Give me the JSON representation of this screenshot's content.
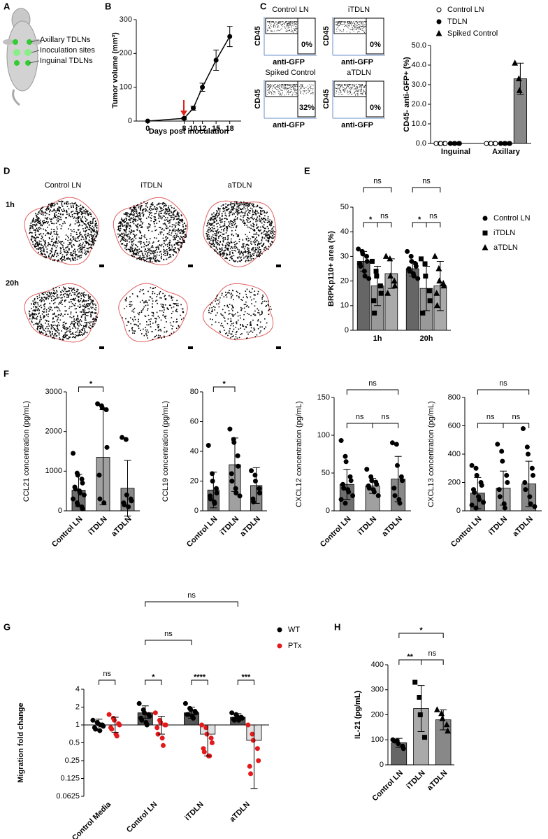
{
  "panel_letters": [
    "A",
    "B",
    "C",
    "D",
    "E",
    "F",
    "G",
    "H"
  ],
  "diagram": {
    "labels": [
      "Axillary TDLNs",
      "Inoculation sites",
      "Inguinal TDLNs"
    ]
  },
  "flow": {
    "y_label": "CD45",
    "x_label": "anti-GFP",
    "panels": [
      {
        "title": "Control LN",
        "percent": "0%"
      },
      {
        "title": "iTDLN",
        "percent": "0%"
      },
      {
        "title": "Spiked Control",
        "percent": "32%"
      },
      {
        "title": "aTDLN",
        "percent": "0%"
      }
    ]
  },
  "images": {
    "columns": [
      "Control LN",
      "iTDLN",
      "aTDLN"
    ],
    "rows": [
      "1h",
      "20h"
    ]
  },
  "chart_data": [
    {
      "type": "line",
      "y_label": "Tumor volume (mm³)",
      "x_label": "Days post inoculation",
      "x": [
        0,
        8,
        10,
        12,
        15,
        18
      ],
      "values": [
        0,
        8,
        38,
        100,
        180,
        250
      ],
      "errors": [
        0,
        3,
        6,
        12,
        30,
        30
      ],
      "color": "#000000",
      "xlim": [
        -2.5,
        20.5
      ],
      "xticks": [
        0,
        8,
        10,
        12,
        15,
        18
      ],
      "ylim": [
        0,
        300
      ],
      "yticks": [
        0,
        100,
        200,
        300
      ]
    },
    {
      "type": "bar",
      "y_label": "CD45- anti-GFP+ (%)",
      "categories": [
        "Inguinal",
        "Axillary"
      ],
      "series": [
        {
          "name": "Control LN",
          "marker": "circle",
          "open": true,
          "color": "#000000",
          "bar_color": "#888888",
          "values": [
            0,
            0
          ],
          "points": [
            [
              0,
              0,
              0,
              0,
              0
            ],
            [
              0,
              0,
              0,
              0,
              0
            ]
          ]
        },
        {
          "name": "TDLN",
          "marker": "circle",
          "color": "#000000",
          "bar_color": "#888888",
          "values": [
            0,
            0
          ],
          "points": [
            [
              0,
              0,
              0,
              0,
              0
            ],
            [
              0,
              0,
              0,
              0,
              0
            ]
          ]
        },
        {
          "name": "Spiked Control",
          "marker": "triangle",
          "color": "#000000",
          "bar_color": "#888888",
          "values": [
            null,
            33
          ],
          "errors": [
            null,
            8
          ],
          "points": [
            null,
            [
              41,
              33,
              27
            ]
          ]
        }
      ],
      "ylim": [
        0,
        50
      ],
      "yticks": [
        {
          "value": 0,
          "label": "0.0"
        },
        {
          "value": 10,
          "label": "10.0"
        },
        {
          "value": 20,
          "label": "20.0"
        },
        {
          "value": 30,
          "label": "30.0"
        },
        {
          "value": 40,
          "label": "40.0"
        },
        {
          "value": 50,
          "label": "50.0"
        }
      ]
    },
    {
      "type": "bar",
      "y_label": "BRPKp110+ area (%)",
      "categories": [
        "1h",
        "20h"
      ],
      "series": [
        {
          "name": "Control LN",
          "marker": "circle",
          "color": "#000000",
          "bar_color": "#666666",
          "values": [
            28,
            25
          ],
          "errors": [
            4,
            3
          ],
          "points": [
            [
              33,
              32,
              31,
              30,
              28,
              27,
              26,
              24,
              22,
              21
            ],
            [
              32,
              30,
              28,
              27,
              26,
              25,
              24,
              23,
              22,
              21
            ]
          ]
        },
        {
          "name": "iTDLN",
          "marker": "square",
          "color": "#000000",
          "bar_color": "#999999",
          "values": [
            18,
            17
          ],
          "errors": [
            8,
            9
          ],
          "points": [
            [
              28,
              24,
              22,
              18,
              15,
              12,
              7
            ],
            [
              29,
              27,
              22,
              16,
              12,
              7
            ]
          ]
        },
        {
          "name": "aTDLN",
          "marker": "triangle",
          "color": "#000000",
          "bar_color": "#aaaaaa",
          "values": [
            23,
            18
          ],
          "errors": [
            6,
            10
          ],
          "points": [
            [
              30,
              29,
              22,
              20,
              18,
              15
            ],
            [
              30,
              25,
              20,
              19,
              18,
              15,
              10
            ]
          ]
        }
      ],
      "ylim": [
        0,
        50
      ],
      "yticks": [
        0,
        10,
        20,
        30,
        40,
        50
      ],
      "annotations": [
        "ns",
        "*",
        "ns",
        "ns",
        "*",
        "ns"
      ]
    },
    {
      "type": "bar",
      "y_label": "CCL21 concentration (pg/mL)",
      "categories": [
        "Control LN",
        "iTDLN",
        "aTDLN"
      ],
      "series": [
        {
          "marker": "circle",
          "color": "#000000",
          "colors": [
            "#6e6e6e",
            "#a0a0a0",
            "#888888"
          ],
          "values": [
            520,
            1350,
            570
          ],
          "errors": [
            400,
            1200,
            700
          ],
          "points": [
            [
              1450,
              950,
              900,
              800,
              700,
              600,
              550,
              500,
              450,
              400,
              300,
              200,
              150,
              100,
              50
            ],
            [
              2700,
              2650,
              2600,
              2550,
              1600,
              900,
              300,
              200
            ],
            [
              1850,
              1800,
              400,
              300,
              250,
              200,
              150,
              100
            ]
          ]
        }
      ],
      "ylim": [
        0,
        3000
      ],
      "yticks": [
        0,
        1000,
        2000,
        3000
      ],
      "annotations": [
        "*"
      ]
    },
    {
      "type": "bar",
      "y_label": "CCL19 concentration (pg/mL)",
      "categories": [
        "Control LN",
        "iTDLN",
        "aTDLN"
      ],
      "series": [
        {
          "marker": "circle",
          "color": "#000000",
          "colors": [
            "#6e6e6e",
            "#a0a0a0",
            "#888888"
          ],
          "values": [
            14,
            31,
            17
          ],
          "errors": [
            12,
            18,
            12
          ],
          "points": [
            [
              44,
              25,
              20,
              15,
              12,
              10,
              8,
              6,
              5
            ],
            [
              55,
              48,
              46,
              37,
              30,
              25,
              20,
              15,
              12,
              10
            ],
            [
              27,
              24,
              20,
              15,
              12,
              8,
              6
            ]
          ]
        }
      ],
      "ylim": [
        0,
        80
      ],
      "yticks": [
        0,
        20,
        40,
        60,
        80
      ],
      "annotations": [
        "*"
      ]
    },
    {
      "type": "bar",
      "y_label": "CXCL12 concentration (pg/mL)",
      "categories": [
        "Control LN",
        "iTDLN",
        "aTDLN"
      ],
      "series": [
        {
          "marker": "circle",
          "color": "#000000",
          "colors": [
            "#6e6e6e",
            "#a0a0a0",
            "#888888"
          ],
          "values": [
            35,
            33,
            42
          ],
          "errors": [
            20,
            10,
            30
          ],
          "points": [
            [
              93,
              72,
              65,
              45,
              40,
              35,
              30,
              28,
              25,
              20,
              15,
              10
            ],
            [
              55,
              45,
              40,
              38,
              35,
              33,
              30,
              28,
              25,
              20
            ],
            [
              90,
              88,
              60,
              45,
              40,
              30,
              20,
              15,
              10
            ]
          ]
        }
      ],
      "ylim": [
        0,
        150
      ],
      "yticks": [
        0,
        50,
        100,
        150
      ],
      "annotations": [
        "ns",
        "ns",
        "ns"
      ]
    },
    {
      "type": "bar",
      "y_label": "CXCL13 concentration (pg/mL)",
      "categories": [
        "Control LN",
        "iTDLN",
        "aTDLN"
      ],
      "series": [
        {
          "marker": "circle",
          "color": "#000000",
          "colors": [
            "#6e6e6e",
            "#a0a0a0",
            "#888888"
          ],
          "values": [
            125,
            160,
            190
          ],
          "errors": [
            110,
            120,
            160
          ],
          "points": [
            [
              320,
              300,
              250,
              200,
              180,
              150,
              130,
              100,
              80,
              60,
              40,
              20
            ],
            [
              470,
              420,
              350,
              250,
              200,
              150,
              100,
              50,
              20
            ],
            [
              580,
              450,
              400,
              300,
              250,
              200,
              150,
              100,
              50,
              30
            ]
          ]
        }
      ],
      "ylim": [
        0,
        800
      ],
      "yticks": [
        0,
        200,
        400,
        600,
        800
      ],
      "annotations": [
        "ns",
        "ns",
        "ns"
      ]
    },
    {
      "type": "bar",
      "y_label": "Migration fold change",
      "log": true,
      "categories": [
        "Control Media",
        "Control LN",
        "iTDLN",
        "aTDLN"
      ],
      "series": [
        {
          "name": "WT",
          "marker": "circle",
          "color": "#000000",
          "bar_color": "#555555",
          "values": [
            1.0,
            1.6,
            1.6,
            1.35
          ],
          "error_bounds": [
            [
              0.8,
              1.25
            ],
            [
              1.3,
              2.1
            ],
            [
              1.3,
              2.0
            ],
            [
              1.2,
              1.55
            ]
          ],
          "points": [
            [
              1.2,
              1.1,
              1.05,
              1.0,
              0.95,
              0.9,
              0.85,
              0.8,
              1.0
            ],
            [
              2.3,
              1.8,
              1.6,
              1.5,
              1.4,
              1.3,
              1.2,
              1.1,
              1.0
            ],
            [
              2.3,
              1.9,
              1.8,
              1.7,
              1.6,
              1.5,
              1.5,
              1.4,
              1.3
            ],
            [
              1.6,
              1.5,
              1.4,
              1.35,
              1.3,
              1.25,
              1.2,
              1.2
            ]
          ]
        },
        {
          "name": "PTx",
          "marker": "circle",
          "color": "#e31a1c",
          "bar_color": "#e0e0e0",
          "values": [
            1.0,
            1.0,
            0.7,
            0.55
          ],
          "error_bounds": [
            [
              0.75,
              1.35
            ],
            [
              0.7,
              1.4
            ],
            [
              0.3,
              1.0
            ],
            [
              0.085,
              1.0
            ]
          ],
          "points": [
            [
              1.5,
              1.3,
              1.2,
              1.05,
              1.0,
              0.9,
              0.85,
              0.7,
              0.65
            ],
            [
              1.6,
              1.2,
              1.1,
              1.0,
              1.0,
              0.9,
              0.7,
              0.6,
              0.45
            ],
            [
              1.0,
              0.9,
              0.7,
              0.6,
              0.5,
              0.4,
              0.35,
              0.3,
              0.3
            ],
            [
              1.0,
              0.7,
              0.55,
              0.4,
              0.25,
              0.2,
              0.15
            ]
          ]
        }
      ],
      "ylim": [
        0.0625,
        4
      ],
      "yticks": [
        4,
        2,
        1,
        0.5,
        0.25,
        0.125,
        0.0625
      ],
      "annotations": [
        "ns",
        "*",
        "****",
        "***",
        "ns",
        "ns"
      ]
    },
    {
      "type": "bar",
      "y_label": "IL-21 (pg/mL)",
      "categories": [
        "Control LN",
        "iTDLN",
        "aTDLN"
      ],
      "series": [
        {
          "markers": [
            "circle",
            "square",
            "triangle"
          ],
          "color": "#000000",
          "colors": [
            "#666666",
            "#aaaaaa",
            "#888888"
          ],
          "values": [
            88,
            225,
            180
          ],
          "errors": [
            18,
            92,
            40
          ],
          "points": [
            [
              100,
              95,
              85,
              75,
              65,
              95
            ],
            [
              330,
              270,
              200,
              110
            ],
            [
              220,
              205,
              185,
              160,
              135
            ]
          ]
        }
      ],
      "ylim": [
        0,
        400
      ],
      "yticks": [
        0,
        100,
        200,
        300,
        400
      ],
      "annotations": [
        "*",
        "**",
        "ns"
      ]
    }
  ]
}
